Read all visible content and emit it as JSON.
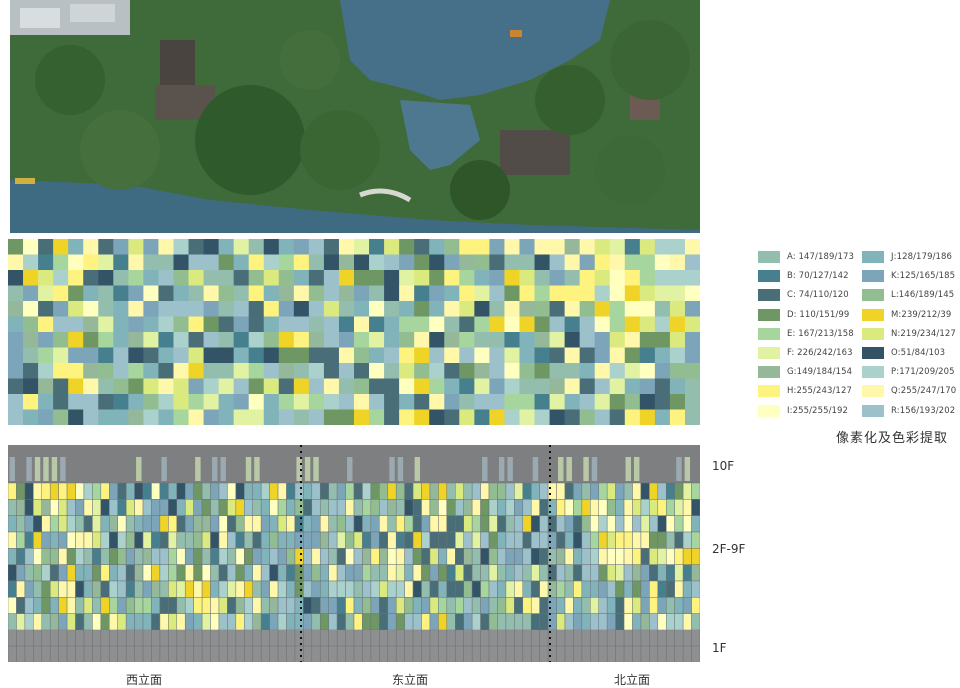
{
  "legend": {
    "caption": "像素化及色彩提取",
    "items": [
      {
        "label": "A: 147/189/173",
        "color": "#93bdad"
      },
      {
        "label": "B:  70/127/142",
        "color": "#467f8e"
      },
      {
        "label": "C:  74/110/120",
        "color": "#4a6e78"
      },
      {
        "label": "D:  110/151/99",
        "color": "#6e9763"
      },
      {
        "label": "E:  167/213/158",
        "color": "#a7d59e"
      },
      {
        "label": "F: 226/242/163",
        "color": "#e2f2a3"
      },
      {
        "label": "G:149/184/154",
        "color": "#95b89a"
      },
      {
        "label": "H:255/243/127",
        "color": "#fff37f"
      },
      {
        "label": "I:255/255/192",
        "color": "#ffffc0"
      },
      {
        "label": "J:128/179/186",
        "color": "#80b3ba"
      },
      {
        "label": "K:125/165/185",
        "color": "#7da5b9"
      },
      {
        "label": "L:146/189/145",
        "color": "#92bd91"
      },
      {
        "label": "M:239/212/39",
        "color": "#efd427"
      },
      {
        "label": "N:219/234/127",
        "color": "#dbea7f"
      },
      {
        "label": "O:51/84/103",
        "color": "#335467"
      },
      {
        "label": "P:171/209/205",
        "color": "#abd1cd"
      },
      {
        "label": "Q:255/247/170",
        "color": "#fff7aa"
      },
      {
        "label": "R:156/193/202",
        "color": "#9cc1ca"
      }
    ]
  },
  "facade": {
    "floors": [
      "10F",
      "2F-9F",
      "1F"
    ],
    "elevations": [
      "西立面",
      "东立面",
      "北立面"
    ]
  }
}
